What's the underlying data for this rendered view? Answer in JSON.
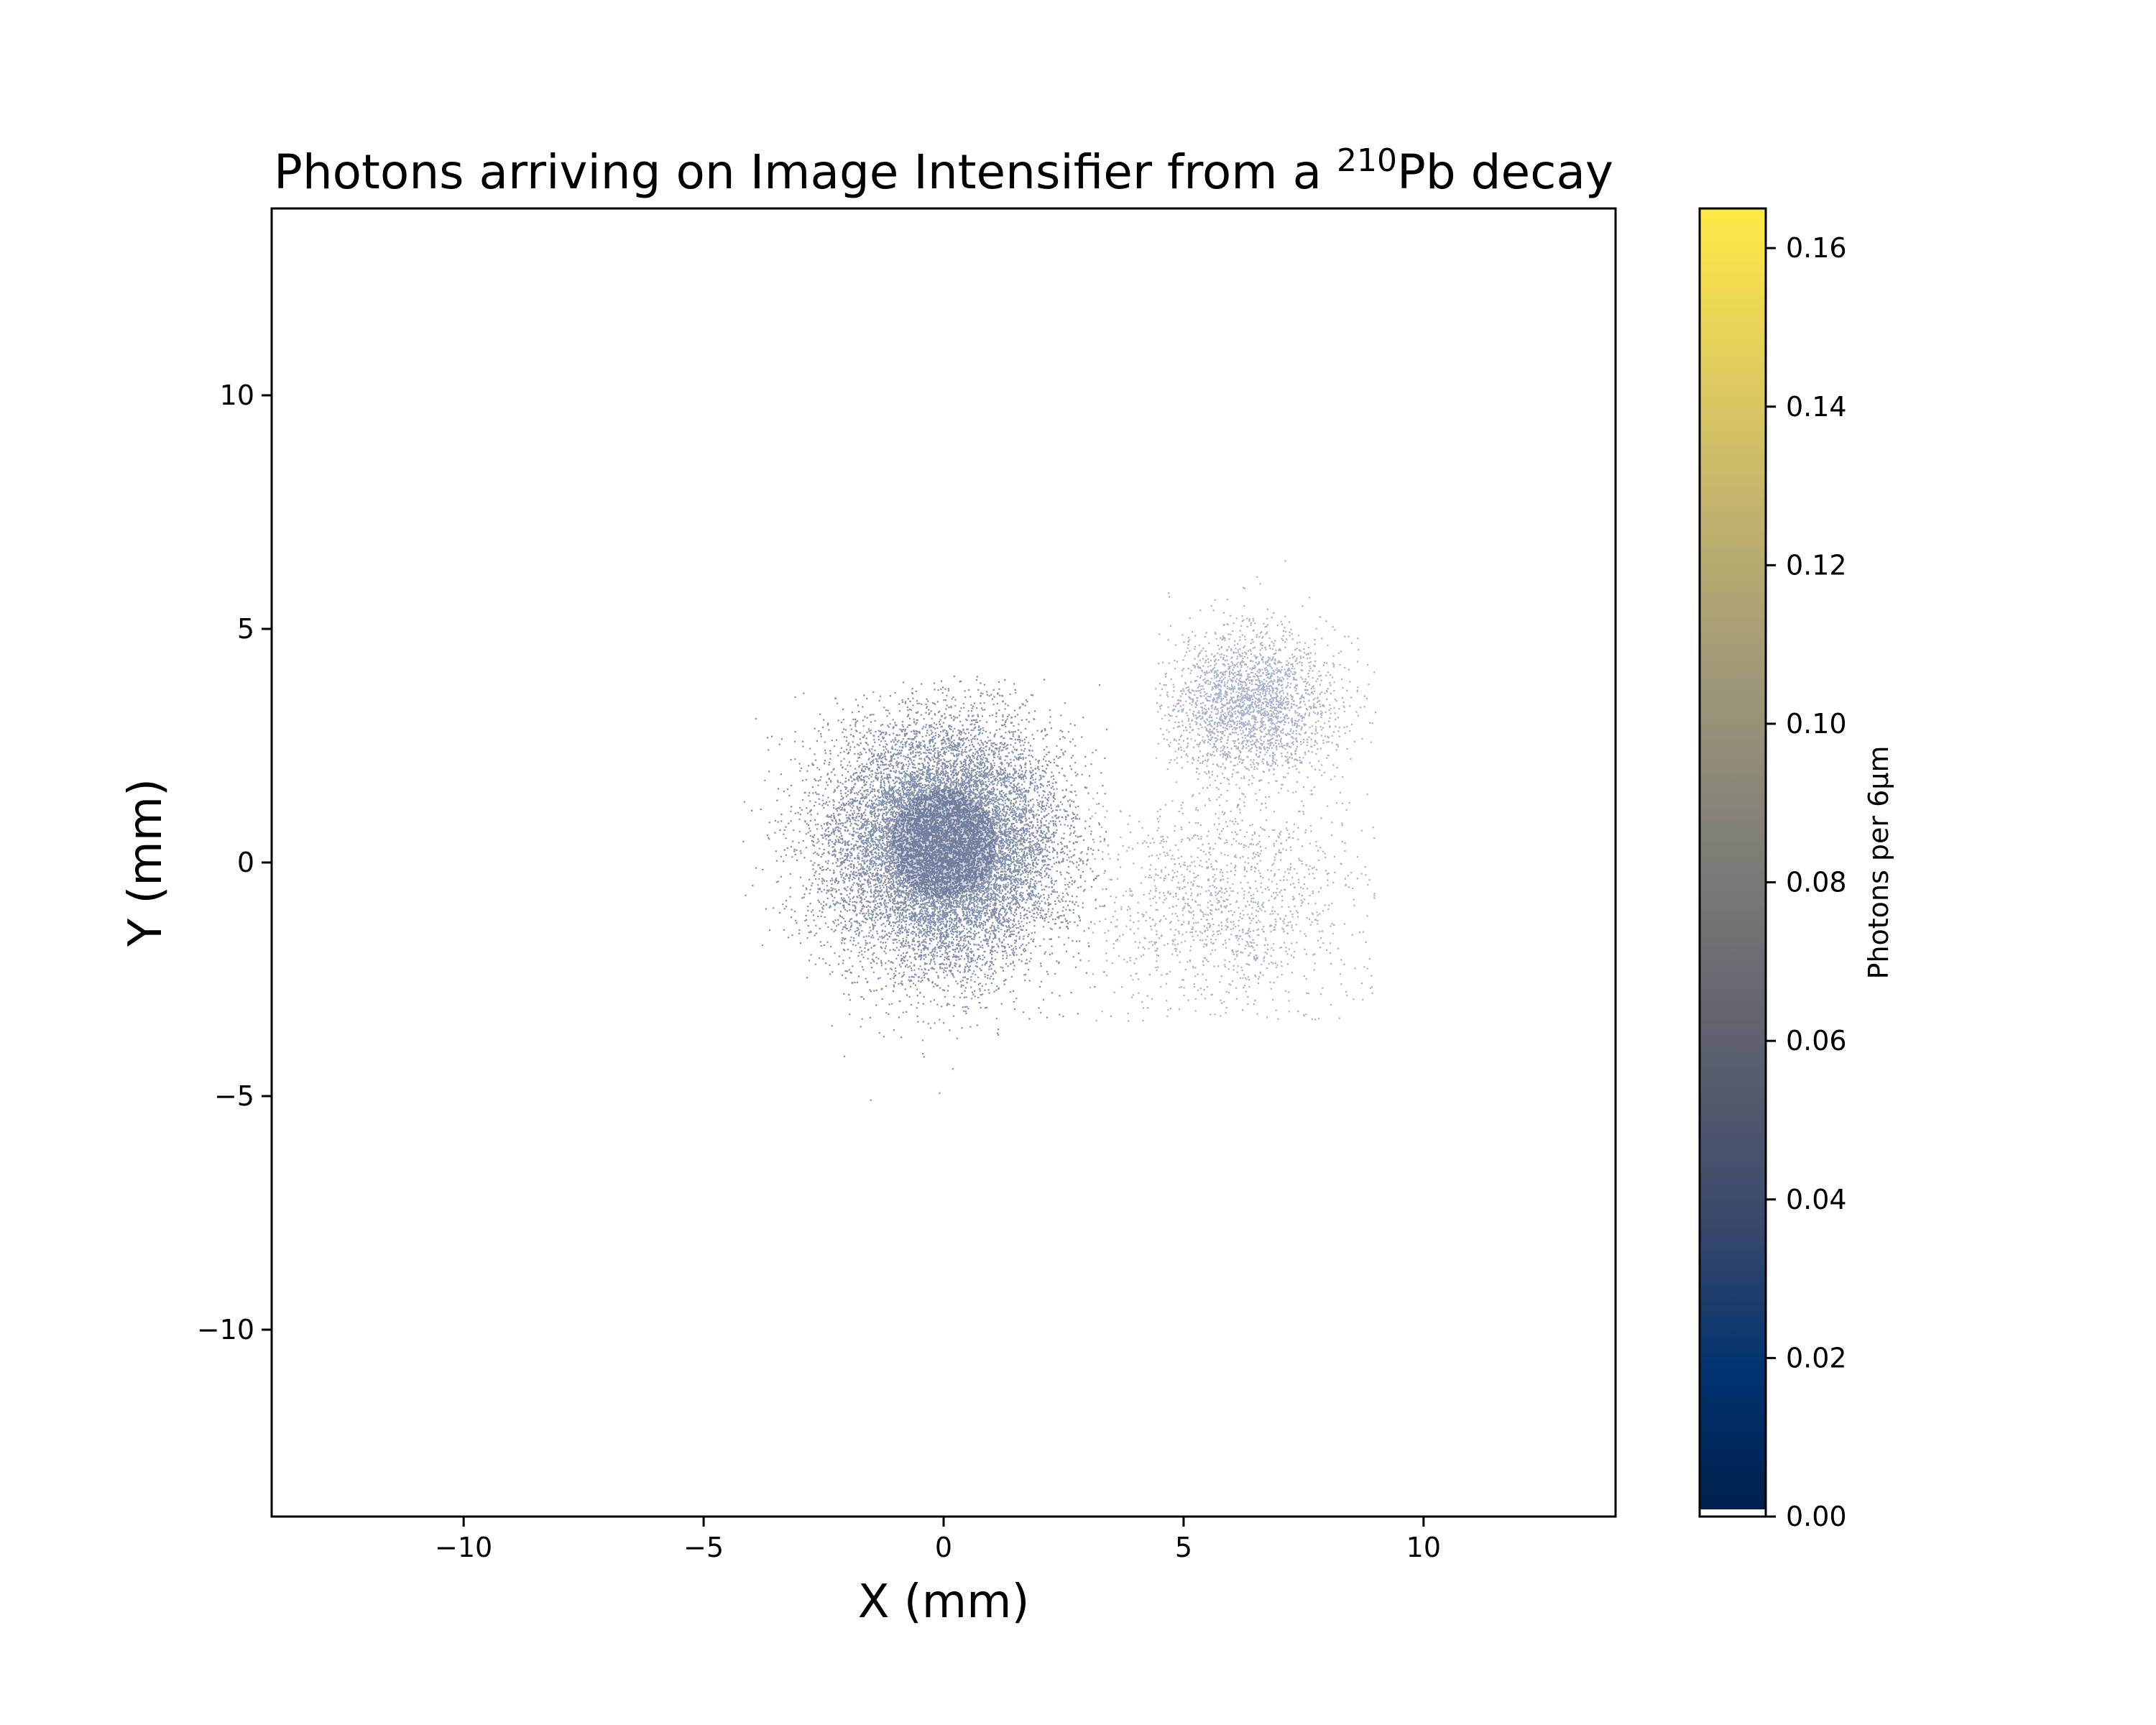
{
  "chart_data": {
    "type": "heatmap",
    "title": {
      "prefix": "Photons arriving on Image Intensifier from a ",
      "superscript": "210",
      "suffix": "Pb decay"
    },
    "xlabel": "X (mm)",
    "ylabel": "Y (mm)",
    "xlim": [
      -14,
      14
    ],
    "ylim": [
      -14,
      14
    ],
    "x_ticks": [
      -10,
      -5,
      0,
      5,
      10
    ],
    "x_tick_labels": [
      "−10",
      "−5",
      "0",
      "5",
      "10"
    ],
    "y_ticks": [
      -10,
      -5,
      0,
      5,
      10
    ],
    "y_tick_labels": [
      "−10",
      "−5",
      "0",
      "5",
      "10"
    ],
    "colorbar": {
      "label": "Photons per 6μm",
      "range": [
        0.0,
        0.165
      ],
      "ticks": [
        0.0,
        0.02,
        0.04,
        0.06,
        0.08,
        0.1,
        0.12,
        0.14,
        0.16
      ],
      "tick_labels": [
        "0.00",
        "0.02",
        "0.04",
        "0.06",
        "0.08",
        "0.10",
        "0.12",
        "0.14",
        "0.16"
      ],
      "colormap": "cividis",
      "colormap_stops": [
        "#00204c",
        "#00336f",
        "#39486b",
        "#575c6d",
        "#707173",
        "#8a8779",
        "#a69d75",
        "#c4b56c",
        "#e4cf5b",
        "#ffe945"
      ]
    },
    "grid": false,
    "photon_clusters": [
      {
        "center": [
          0.0,
          0.4
        ],
        "sigma": [
          1.2,
          1.3
        ],
        "extent_x": [
          -4.2,
          3.4
        ],
        "extent_y": [
          -5.8,
          4.0
        ],
        "density": "high",
        "peak_value": 0.04
      },
      {
        "center": [
          6.4,
          3.4
        ],
        "sigma": [
          0.9,
          0.8
        ],
        "extent_x": [
          4.4,
          9.0
        ],
        "extent_y": [
          1.0,
          6.9
        ],
        "density": "low",
        "peak_value": 0.02
      },
      {
        "center": [
          5.9,
          -0.9
        ],
        "sigma": [
          1.5,
          1.3
        ],
        "extent_x": [
          3.0,
          9.0
        ],
        "extent_y": [
          -3.4,
          1.5
        ],
        "density": "very low",
        "peak_value": 0.01
      }
    ]
  }
}
